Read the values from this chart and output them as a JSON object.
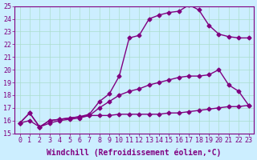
{
  "line1_x": [
    0,
    1,
    2,
    3,
    4,
    5,
    6,
    7,
    8,
    9,
    10,
    11,
    12,
    13,
    14,
    15,
    16,
    17,
    18,
    19,
    20,
    21,
    22,
    23
  ],
  "line1_y": [
    15.8,
    16.6,
    15.5,
    16.0,
    16.1,
    16.2,
    16.3,
    16.5,
    17.5,
    18.1,
    19.5,
    22.5,
    22.7,
    24.0,
    24.3,
    24.5,
    24.6,
    25.1,
    24.7,
    23.5,
    22.8,
    22.6,
    22.5,
    22.5
  ],
  "line2_x": [
    0,
    1,
    2,
    3,
    4,
    5,
    6,
    7,
    8,
    9,
    10,
    11,
    12,
    13,
    14,
    15,
    16,
    17,
    18,
    19,
    20,
    21,
    22,
    23
  ],
  "line2_y": [
    15.8,
    16.0,
    15.5,
    15.8,
    16.0,
    16.1,
    16.2,
    16.4,
    17.0,
    17.5,
    18.0,
    18.3,
    18.5,
    18.8,
    19.0,
    19.2,
    19.4,
    19.5,
    19.5,
    19.6,
    20.0,
    18.8,
    18.3,
    17.2
  ],
  "line3_x": [
    0,
    1,
    2,
    3,
    4,
    5,
    6,
    7,
    8,
    9,
    10,
    11,
    12,
    13,
    14,
    15,
    16,
    17,
    18,
    19,
    20,
    21,
    22,
    23
  ],
  "line3_y": [
    15.8,
    16.6,
    15.5,
    16.0,
    16.1,
    16.2,
    16.3,
    16.4,
    16.4,
    16.4,
    16.5,
    16.5,
    16.5,
    16.5,
    16.5,
    16.6,
    16.6,
    16.7,
    16.8,
    16.9,
    17.0,
    17.1,
    17.1,
    17.2
  ],
  "color": "#800080",
  "bg_color": "#cceeff",
  "grid_color": "#aaddcc",
  "xlabel": "Windchill (Refroidissement éolien,°C)",
  "ylim": [
    15,
    25
  ],
  "yticks": [
    15,
    16,
    17,
    18,
    19,
    20,
    21,
    22,
    23,
    24,
    25
  ],
  "xticks": [
    0,
    1,
    2,
    3,
    4,
    5,
    6,
    7,
    8,
    9,
    10,
    11,
    12,
    13,
    14,
    15,
    16,
    17,
    18,
    19,
    20,
    21,
    22,
    23
  ],
  "marker": "D",
  "markersize": 2.5,
  "linewidth": 1.0,
  "tick_fontsize": 6,
  "xlabel_fontsize": 7
}
